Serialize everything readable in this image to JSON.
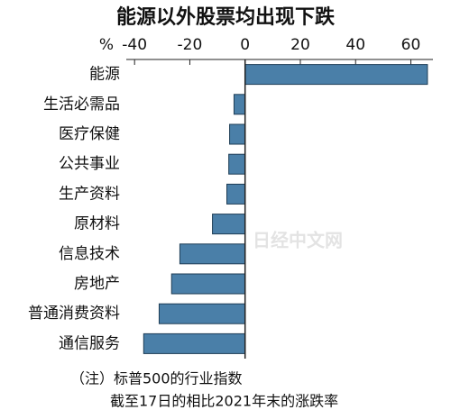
{
  "chart_data": {
    "type": "barh",
    "title": "能源以外股票均出现下跌",
    "xlabel": "%",
    "categories": [
      "能源",
      "生活必需品",
      "医疗保健",
      "公共事业",
      "生产资料",
      "原材料",
      "信息技术",
      "房地产",
      "普通消费资料",
      "通信服务"
    ],
    "values": [
      66,
      -4,
      -5.6,
      -5.9,
      -6.6,
      -11.8,
      -23.6,
      -26.6,
      -31.1,
      -36.7
    ],
    "color": "#4a7fa8",
    "xlim": [
      -43,
      68
    ],
    "xticks": [
      -40,
      -20,
      0,
      20,
      40,
      60
    ],
    "watermark": "日经中文网",
    "notes": [
      "（注）标普500的行业指数",
      "截至17日的相比2021年末的涨跌率"
    ]
  }
}
